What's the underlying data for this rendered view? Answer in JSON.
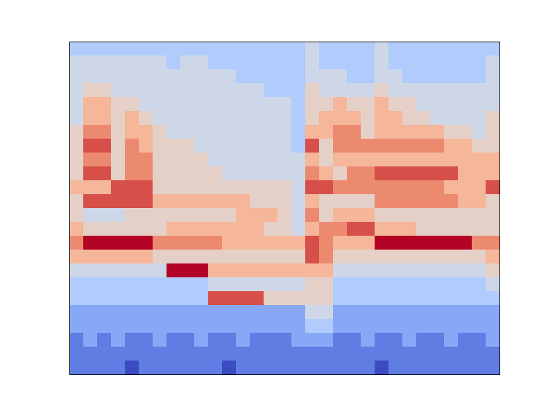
{
  "chart_data": {
    "type": "heatmap",
    "tick_labels": false,
    "zlim": [
      0,
      9
    ],
    "cells": [
      [
        3,
        3,
        3,
        3,
        3,
        3,
        3,
        3,
        3,
        3,
        3,
        3,
        3,
        3,
        3,
        3,
        3,
        4,
        3,
        3,
        3,
        3,
        4,
        3,
        3,
        3,
        3,
        3,
        3,
        3,
        3
      ],
      [
        4,
        4,
        4,
        4,
        4,
        4,
        4,
        3,
        4,
        4,
        3,
        3,
        3,
        3,
        3,
        3,
        3,
        4,
        3,
        3,
        3,
        3,
        4,
        3,
        3,
        3,
        3,
        3,
        3,
        3,
        4
      ],
      [
        4,
        4,
        4,
        4,
        4,
        4,
        4,
        4,
        4,
        4,
        4,
        4,
        3,
        3,
        3,
        3,
        3,
        4,
        4,
        4,
        3,
        3,
        4,
        4,
        3,
        3,
        3,
        3,
        3,
        3,
        4
      ],
      [
        4,
        5,
        5,
        4,
        4,
        4,
        4,
        4,
        4,
        4,
        4,
        4,
        4,
        4,
        3,
        3,
        3,
        5,
        4,
        4,
        4,
        4,
        5,
        4,
        4,
        4,
        4,
        4,
        4,
        4,
        4
      ],
      [
        4,
        6,
        6,
        5,
        5,
        4,
        4,
        4,
        4,
        4,
        4,
        4,
        4,
        4,
        4,
        4,
        3,
        5,
        5,
        6,
        5,
        5,
        6,
        5,
        5,
        4,
        4,
        4,
        4,
        4,
        4
      ],
      [
        4,
        6,
        6,
        5,
        6,
        5,
        4,
        4,
        4,
        4,
        4,
        4,
        4,
        4,
        4,
        4,
        3,
        5,
        6,
        6,
        6,
        5,
        6,
        6,
        5,
        5,
        4,
        4,
        4,
        4,
        5
      ],
      [
        5,
        7,
        7,
        5,
        6,
        6,
        5,
        4,
        4,
        4,
        4,
        4,
        4,
        4,
        4,
        4,
        3,
        6,
        6,
        7,
        7,
        5,
        6,
        6,
        6,
        6,
        6,
        5,
        5,
        4,
        5
      ],
      [
        5,
        8,
        8,
        5,
        7,
        6,
        5,
        5,
        5,
        4,
        4,
        4,
        4,
        4,
        4,
        4,
        3,
        8,
        5,
        7,
        7,
        7,
        7,
        7,
        7,
        7,
        7,
        6,
        6,
        5,
        5
      ],
      [
        5,
        7,
        7,
        5,
        7,
        7,
        5,
        5,
        5,
        5,
        4,
        4,
        4,
        4,
        4,
        4,
        4,
        6,
        5,
        6,
        6,
        6,
        6,
        6,
        6,
        6,
        6,
        6,
        6,
        6,
        6
      ],
      [
        5,
        8,
        8,
        5,
        7,
        7,
        5,
        5,
        5,
        5,
        5,
        4,
        4,
        4,
        4,
        4,
        4,
        7,
        6,
        5,
        7,
        7,
        8,
        8,
        8,
        8,
        8,
        8,
        6,
        6,
        6
      ],
      [
        6,
        6,
        6,
        8,
        8,
        8,
        5,
        5,
        5,
        5,
        5,
        5,
        5,
        5,
        5,
        5,
        4,
        8,
        8,
        7,
        7,
        7,
        7,
        7,
        7,
        7,
        7,
        6,
        6,
        6,
        8
      ],
      [
        5,
        8,
        8,
        8,
        8,
        8,
        6,
        6,
        6,
        6,
        6,
        6,
        6,
        5,
        5,
        5,
        4,
        6,
        5,
        5,
        5,
        5,
        7,
        7,
        7,
        7,
        7,
        7,
        6,
        6,
        5
      ],
      [
        5,
        4,
        4,
        4,
        5,
        5,
        5,
        5,
        5,
        5,
        5,
        5,
        6,
        6,
        6,
        5,
        4,
        7,
        5,
        6,
        6,
        6,
        5,
        5,
        5,
        5,
        5,
        5,
        5,
        5,
        5
      ],
      [
        6,
        5,
        5,
        5,
        5,
        5,
        5,
        6,
        6,
        6,
        6,
        6,
        6,
        6,
        5,
        5,
        4,
        6,
        7,
        7,
        8,
        8,
        6,
        6,
        6,
        5,
        5,
        5,
        5,
        5,
        5
      ],
      [
        7,
        9,
        9,
        9,
        9,
        9,
        7,
        7,
        7,
        7,
        7,
        6,
        6,
        6,
        6,
        6,
        6,
        8,
        7,
        6,
        6,
        6,
        9,
        9,
        9,
        9,
        9,
        9,
        9,
        7,
        7
      ],
      [
        6,
        6,
        6,
        6,
        6,
        6,
        5,
        5,
        5,
        5,
        5,
        5,
        5,
        5,
        5,
        5,
        5,
        8,
        7,
        5,
        5,
        5,
        5,
        5,
        5,
        5,
        5,
        5,
        5,
        5,
        6
      ],
      [
        4,
        4,
        4,
        4,
        4,
        4,
        4,
        9,
        9,
        9,
        6,
        6,
        6,
        6,
        6,
        6,
        6,
        6,
        6,
        4,
        4,
        4,
        4,
        4,
        4,
        4,
        4,
        4,
        4,
        4,
        5
      ],
      [
        3,
        3,
        3,
        3,
        3,
        3,
        3,
        3,
        3,
        3,
        4,
        4,
        4,
        4,
        4,
        4,
        4,
        5,
        5,
        3,
        3,
        3,
        3,
        3,
        3,
        3,
        3,
        3,
        3,
        3,
        4
      ],
      [
        3,
        3,
        3,
        3,
        3,
        3,
        3,
        3,
        3,
        3,
        8,
        8,
        8,
        8,
        5,
        5,
        5,
        5,
        5,
        3,
        3,
        3,
        3,
        3,
        3,
        3,
        3,
        3,
        3,
        3,
        3
      ],
      [
        2,
        2,
        2,
        2,
        2,
        2,
        2,
        2,
        2,
        2,
        2,
        2,
        2,
        2,
        2,
        2,
        2,
        4,
        4,
        2,
        2,
        2,
        2,
        2,
        2,
        2,
        2,
        2,
        2,
        2,
        2
      ],
      [
        2,
        2,
        2,
        2,
        2,
        2,
        2,
        2,
        2,
        2,
        2,
        2,
        2,
        2,
        2,
        2,
        2,
        3,
        3,
        2,
        2,
        2,
        2,
        2,
        2,
        2,
        2,
        2,
        2,
        2,
        2
      ],
      [
        1,
        2,
        1,
        2,
        1,
        1,
        2,
        1,
        1,
        2,
        1,
        1,
        2,
        1,
        1,
        1,
        2,
        2,
        2,
        1,
        1,
        2,
        1,
        1,
        2,
        1,
        1,
        2,
        1,
        1,
        2
      ],
      [
        1,
        1,
        1,
        1,
        1,
        1,
        1,
        1,
        1,
        1,
        1,
        1,
        1,
        1,
        1,
        1,
        1,
        1,
        1,
        1,
        1,
        1,
        1,
        1,
        1,
        1,
        1,
        1,
        1,
        1,
        1
      ],
      [
        1,
        1,
        1,
        1,
        0,
        1,
        1,
        1,
        1,
        1,
        1,
        0,
        1,
        1,
        1,
        1,
        1,
        1,
        1,
        1,
        1,
        1,
        0,
        1,
        1,
        1,
        1,
        1,
        1,
        1,
        1
      ]
    ]
  }
}
